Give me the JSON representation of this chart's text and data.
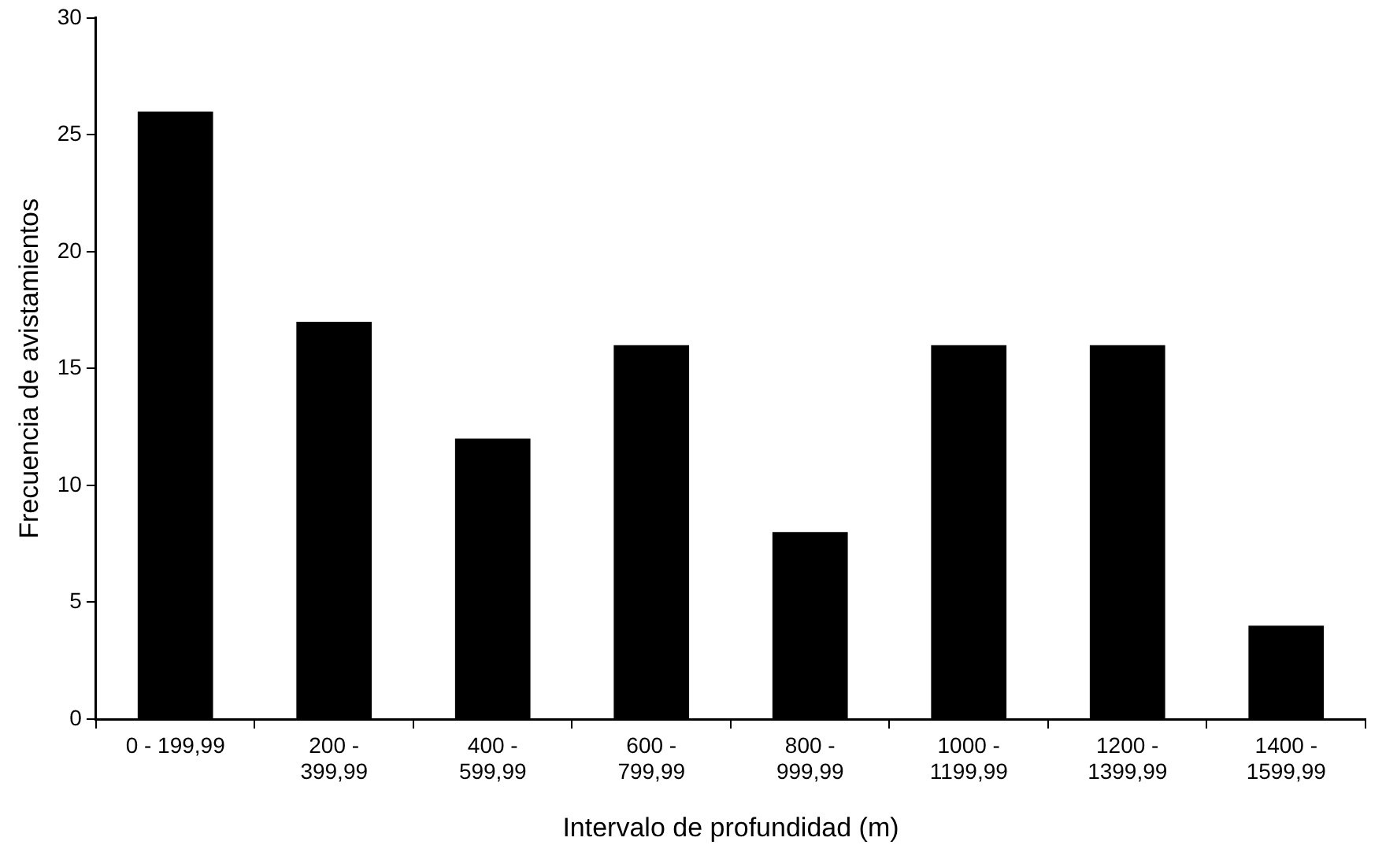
{
  "chart_data": {
    "type": "bar",
    "xlabel": "Intervalo de profundidad (m)",
    "ylabel": "Frecuencia de avistamientos",
    "categories": [
      "0 - 199,99",
      "200 -\n399,99",
      "400 -\n599,99",
      "600 -\n799,99",
      "800 -\n999,99",
      "1000 -\n1199,99",
      "1200 -\n1399,99",
      "1400 -\n1599,99"
    ],
    "values": [
      26,
      17,
      12,
      16,
      8,
      16,
      16,
      4
    ],
    "color": "#000000",
    "ylim": [
      0,
      30
    ],
    "yticks": [
      0,
      5,
      10,
      15,
      20,
      25,
      30
    ],
    "grid": false,
    "legend": false
  }
}
